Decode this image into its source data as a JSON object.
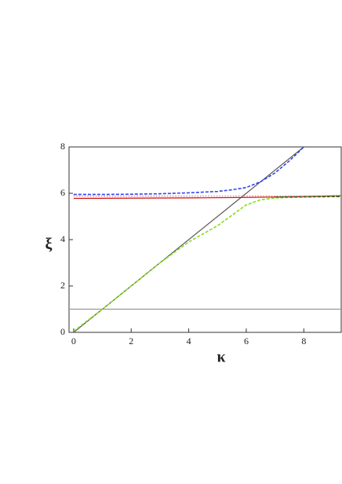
{
  "chart_data": {
    "type": "line",
    "x_label": "κ",
    "y_label": "ξ",
    "xlim": [
      -0.16,
      9.3
    ],
    "ylim": [
      0,
      8
    ],
    "xticks": [
      0,
      2,
      4,
      6,
      8
    ],
    "yticks": [
      0,
      2,
      4,
      6,
      8
    ],
    "series": [
      {
        "color": "#555555",
        "style": "solid",
        "x": [
          0,
          8
        ],
        "values": [
          0,
          8
        ]
      },
      {
        "color": "#999999",
        "style": "solid",
        "x": [
          -0.16,
          9.3
        ],
        "values": [
          1,
          1
        ]
      },
      {
        "color": "#3344ee",
        "style": "dashed",
        "x": [
          0,
          1,
          2,
          3,
          4,
          5,
          5.5,
          6,
          6.5,
          7,
          7.5,
          8
        ],
        "values": [
          5.95,
          5.95,
          5.96,
          5.98,
          6.02,
          6.08,
          6.15,
          6.25,
          6.5,
          6.88,
          7.4,
          8
        ]
      },
      {
        "color": "#88dd22",
        "style": "dashed",
        "x": [
          0,
          1,
          2,
          3,
          4,
          4.5,
          5,
          5.5,
          6,
          6.5,
          7,
          7.5,
          8,
          9.3
        ],
        "values": [
          0.05,
          1,
          2,
          3,
          3.9,
          4.25,
          4.6,
          5.05,
          5.5,
          5.72,
          5.8,
          5.82,
          5.84,
          5.87
        ]
      },
      {
        "color": "#cc1111",
        "style": "solid",
        "x": [
          0,
          4,
          6,
          8,
          9.3
        ],
        "values": [
          5.78,
          5.8,
          5.82,
          5.86,
          5.9
        ]
      },
      {
        "color": "#ee8899",
        "style": "dotted",
        "x": [
          0,
          9.3
        ],
        "values": [
          5.88,
          5.88
        ]
      },
      {
        "color": "#226622",
        "style": "dashed",
        "x": [
          7,
          9.3
        ],
        "values": [
          5.84,
          5.86
        ]
      }
    ]
  }
}
